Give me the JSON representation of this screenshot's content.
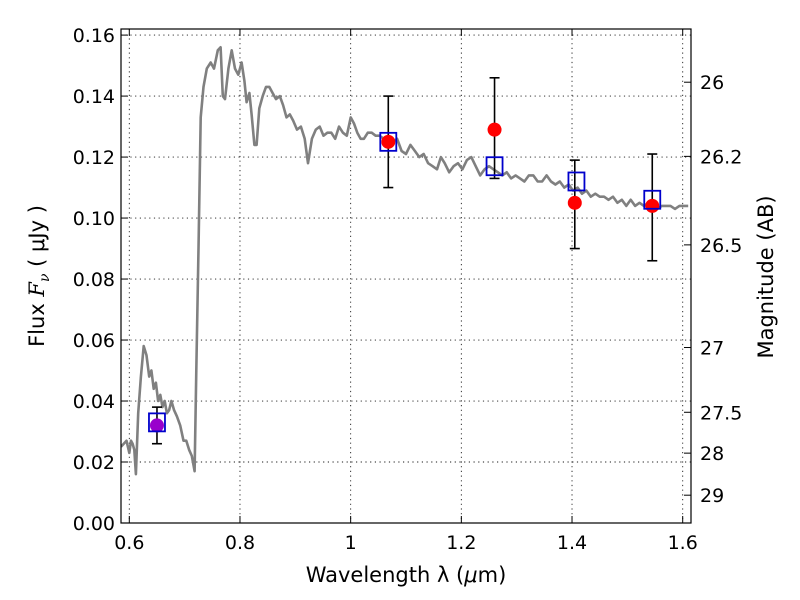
{
  "chart_data": {
    "type": "scatter",
    "title": "",
    "xlabel": "Wavelength  λ (μm)",
    "ylabel": "Flux  F_ν  ( μJy )",
    "ylabel_parts": {
      "prefix": "Flux  ",
      "symbol": "F",
      "subscript": "ν",
      "suffix": "  ( μJy )"
    },
    "xlabel_parts": {
      "prefix": "Wavelength  λ (",
      "mu": "μ",
      "suffix": "m)"
    },
    "y2label": "Magnitude (AB)",
    "xlim": [
      0.585,
      1.615
    ],
    "ylim": [
      0.0,
      0.162
    ],
    "grid": true,
    "x_ticks": [
      {
        "value": 0.6,
        "label": "0.6"
      },
      {
        "value": 0.8,
        "label": "0.8"
      },
      {
        "value": 1.0,
        "label": "1"
      },
      {
        "value": 1.2,
        "label": "1.2"
      },
      {
        "value": 1.4,
        "label": "1.4"
      },
      {
        "value": 1.6,
        "label": "1.6"
      }
    ],
    "y_ticks": [
      {
        "value": 0.0,
        "label": "0.00"
      },
      {
        "value": 0.02,
        "label": "0.02"
      },
      {
        "value": 0.04,
        "label": "0.04"
      },
      {
        "value": 0.06,
        "label": "0.06"
      },
      {
        "value": 0.08,
        "label": "0.08"
      },
      {
        "value": 0.1,
        "label": "0.10"
      },
      {
        "value": 0.12,
        "label": "0.12"
      },
      {
        "value": 0.14,
        "label": "0.14"
      },
      {
        "value": 0.16,
        "label": "0.16"
      }
    ],
    "y2_ticks": [
      {
        "magnitude": 26.0,
        "label": "26"
      },
      {
        "magnitude": 26.2,
        "label": "26.2"
      },
      {
        "magnitude": 26.5,
        "label": "26.5"
      },
      {
        "magnitude": 27.0,
        "label": "27"
      },
      {
        "magnitude": 27.5,
        "label": "27.5"
      },
      {
        "magnitude": 28.0,
        "label": "28"
      },
      {
        "magnitude": 29.0,
        "label": "29"
      }
    ],
    "model_spectrum": {
      "color": "#808080",
      "points": [
        [
          0.585,
          0.025
        ],
        [
          0.595,
          0.027
        ],
        [
          0.6,
          0.023
        ],
        [
          0.603,
          0.027
        ],
        [
          0.606,
          0.026
        ],
        [
          0.609,
          0.024
        ],
        [
          0.612,
          0.016
        ],
        [
          0.616,
          0.036
        ],
        [
          0.621,
          0.048
        ],
        [
          0.626,
          0.058
        ],
        [
          0.631,
          0.055
        ],
        [
          0.636,
          0.048
        ],
        [
          0.64,
          0.05
        ],
        [
          0.644,
          0.044
        ],
        [
          0.648,
          0.046
        ],
        [
          0.652,
          0.04
        ],
        [
          0.656,
          0.042
        ],
        [
          0.66,
          0.038
        ],
        [
          0.664,
          0.04
        ],
        [
          0.668,
          0.036
        ],
        [
          0.672,
          0.037
        ],
        [
          0.676,
          0.04
        ],
        [
          0.681,
          0.037
        ],
        [
          0.686,
          0.035
        ],
        [
          0.692,
          0.032
        ],
        [
          0.698,
          0.027
        ],
        [
          0.703,
          0.027
        ],
        [
          0.708,
          0.024
        ],
        [
          0.713,
          0.022
        ],
        [
          0.716,
          0.019
        ],
        [
          0.718,
          0.017
        ],
        [
          0.721,
          0.05
        ],
        [
          0.725,
          0.09
        ],
        [
          0.729,
          0.133
        ],
        [
          0.734,
          0.143
        ],
        [
          0.74,
          0.149
        ],
        [
          0.747,
          0.151
        ],
        [
          0.753,
          0.149
        ],
        [
          0.76,
          0.155
        ],
        [
          0.765,
          0.156
        ],
        [
          0.769,
          0.14
        ],
        [
          0.773,
          0.139
        ],
        [
          0.779,
          0.149
        ],
        [
          0.785,
          0.155
        ],
        [
          0.791,
          0.149
        ],
        [
          0.797,
          0.147
        ],
        [
          0.803,
          0.151
        ],
        [
          0.808,
          0.145
        ],
        [
          0.812,
          0.138
        ],
        [
          0.817,
          0.141
        ],
        [
          0.821,
          0.134
        ],
        [
          0.826,
          0.124
        ],
        [
          0.83,
          0.124
        ],
        [
          0.835,
          0.136
        ],
        [
          0.841,
          0.14
        ],
        [
          0.847,
          0.143
        ],
        [
          0.853,
          0.143
        ],
        [
          0.859,
          0.141
        ],
        [
          0.865,
          0.139
        ],
        [
          0.872,
          0.14
        ],
        [
          0.878,
          0.137
        ],
        [
          0.884,
          0.133
        ],
        [
          0.89,
          0.134
        ],
        [
          0.896,
          0.132
        ],
        [
          0.903,
          0.129
        ],
        [
          0.91,
          0.13
        ],
        [
          0.917,
          0.126
        ],
        [
          0.923,
          0.118
        ],
        [
          0.93,
          0.126
        ],
        [
          0.937,
          0.129
        ],
        [
          0.944,
          0.13
        ],
        [
          0.951,
          0.127
        ],
        [
          0.958,
          0.128
        ],
        [
          0.965,
          0.128
        ],
        [
          0.972,
          0.126
        ],
        [
          0.979,
          0.13
        ],
        [
          0.986,
          0.128
        ],
        [
          0.993,
          0.127
        ],
        [
          1.0,
          0.133
        ],
        [
          1.006,
          0.131
        ],
        [
          1.012,
          0.128
        ],
        [
          1.018,
          0.126
        ],
        [
          1.024,
          0.126
        ],
        [
          1.031,
          0.128
        ],
        [
          1.038,
          0.128
        ],
        [
          1.045,
          0.127
        ],
        [
          1.052,
          0.127
        ],
        [
          1.06,
          0.126
        ],
        [
          1.068,
          0.127
        ],
        [
          1.076,
          0.125
        ],
        [
          1.084,
          0.126
        ],
        [
          1.092,
          0.122
        ],
        [
          1.1,
          0.121
        ],
        [
          1.108,
          0.124
        ],
        [
          1.116,
          0.122
        ],
        [
          1.124,
          0.12
        ],
        [
          1.132,
          0.121
        ],
        [
          1.14,
          0.118
        ],
        [
          1.148,
          0.117
        ],
        [
          1.156,
          0.116
        ],
        [
          1.163,
          0.12
        ],
        [
          1.17,
          0.118
        ],
        [
          1.178,
          0.115
        ],
        [
          1.186,
          0.117
        ],
        [
          1.194,
          0.118
        ],
        [
          1.202,
          0.116
        ],
        [
          1.21,
          0.119
        ],
        [
          1.218,
          0.12
        ],
        [
          1.226,
          0.117
        ],
        [
          1.234,
          0.114
        ],
        [
          1.242,
          0.116
        ],
        [
          1.25,
          0.117
        ],
        [
          1.258,
          0.116
        ],
        [
          1.266,
          0.115
        ],
        [
          1.274,
          0.114
        ],
        [
          1.282,
          0.115
        ],
        [
          1.29,
          0.113
        ],
        [
          1.298,
          0.114
        ],
        [
          1.306,
          0.113
        ],
        [
          1.314,
          0.112
        ],
        [
          1.322,
          0.114
        ],
        [
          1.33,
          0.114
        ],
        [
          1.338,
          0.112
        ],
        [
          1.346,
          0.112
        ],
        [
          1.354,
          0.114
        ],
        [
          1.362,
          0.112
        ],
        [
          1.37,
          0.111
        ],
        [
          1.378,
          0.112
        ],
        [
          1.386,
          0.11
        ],
        [
          1.394,
          0.111
        ],
        [
          1.402,
          0.109
        ],
        [
          1.41,
          0.11
        ],
        [
          1.418,
          0.108
        ],
        [
          1.426,
          0.109
        ],
        [
          1.434,
          0.107
        ],
        [
          1.442,
          0.108
        ],
        [
          1.45,
          0.107
        ],
        [
          1.458,
          0.107
        ],
        [
          1.466,
          0.106
        ],
        [
          1.474,
          0.107
        ],
        [
          1.482,
          0.105
        ],
        [
          1.49,
          0.106
        ],
        [
          1.498,
          0.104
        ],
        [
          1.506,
          0.106
        ],
        [
          1.514,
          0.104
        ],
        [
          1.522,
          0.105
        ],
        [
          1.53,
          0.104
        ],
        [
          1.538,
          0.105
        ],
        [
          1.546,
          0.104
        ],
        [
          1.554,
          0.103
        ],
        [
          1.562,
          0.104
        ],
        [
          1.57,
          0.104
        ],
        [
          1.578,
          0.104
        ],
        [
          1.586,
          0.103
        ],
        [
          1.594,
          0.104
        ],
        [
          1.602,
          0.104
        ],
        [
          1.61,
          0.104
        ]
      ]
    },
    "observed_points": {
      "color": "#ff0000",
      "errorbar_color": "#000000",
      "points": [
        {
          "x": 0.65,
          "y": 0.032,
          "ylow": 0.026,
          "yhigh": 0.038,
          "color": "#9900cc"
        },
        {
          "x": 1.068,
          "y": 0.125,
          "ylow": 0.11,
          "yhigh": 0.14,
          "color": "#ff0000"
        },
        {
          "x": 1.26,
          "y": 0.129,
          "ylow": 0.113,
          "yhigh": 0.146,
          "color": "#ff0000"
        },
        {
          "x": 1.405,
          "y": 0.105,
          "ylow": 0.09,
          "yhigh": 0.119,
          "color": "#ff0000"
        },
        {
          "x": 1.545,
          "y": 0.104,
          "ylow": 0.086,
          "yhigh": 0.121,
          "color": "#ff0000"
        }
      ]
    },
    "model_band_fluxes": {
      "color": "#0000cc",
      "points": [
        {
          "x": 0.65,
          "y": 0.033
        },
        {
          "x": 1.068,
          "y": 0.125
        },
        {
          "x": 1.26,
          "y": 0.117
        },
        {
          "x": 1.408,
          "y": 0.112
        },
        {
          "x": 1.545,
          "y": 0.106
        }
      ]
    }
  }
}
